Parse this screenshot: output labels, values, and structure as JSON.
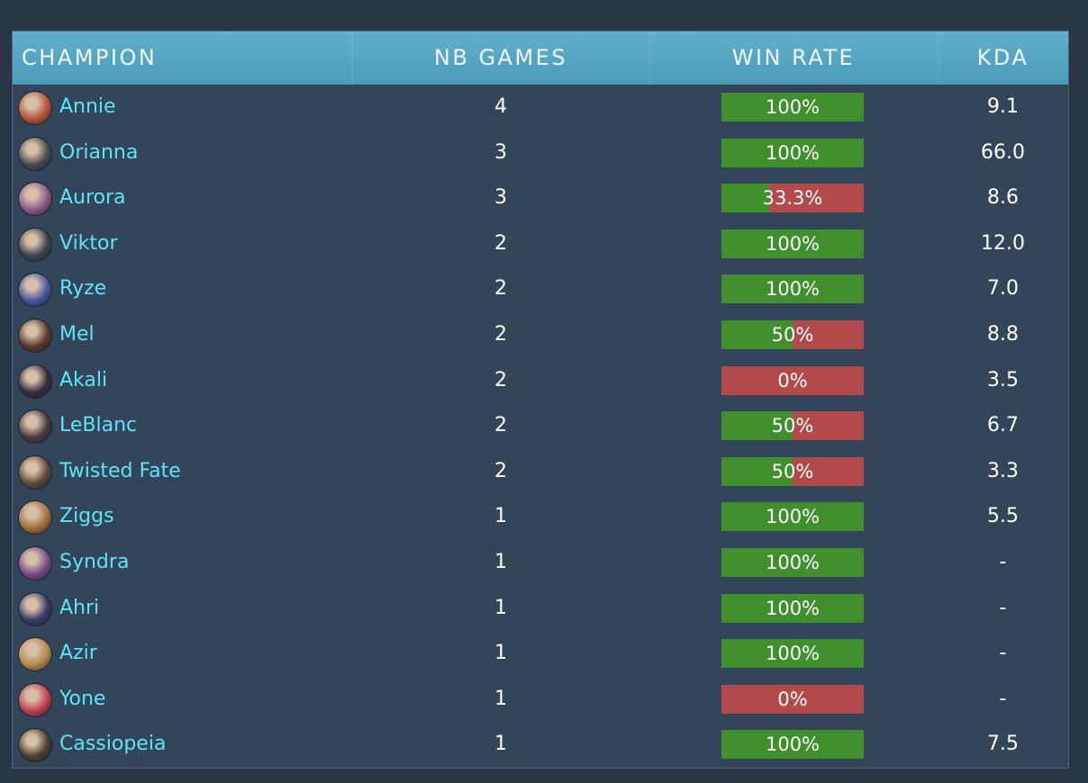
{
  "table": {
    "headers": [
      "CHAMPION",
      "NB GAMES",
      "WIN RATE",
      "KDA"
    ],
    "rows": [
      {
        "champion": "Annie",
        "games": 4,
        "win_rate": {
          "value": 100,
          "label": "100%"
        },
        "kda": "9.1"
      },
      {
        "champion": "Orianna",
        "games": 3,
        "win_rate": {
          "value": 100,
          "label": "100%"
        },
        "kda": "66.0"
      },
      {
        "champion": "Aurora",
        "games": 3,
        "win_rate": {
          "value": 33.3,
          "label": "33.3%"
        },
        "kda": "8.6"
      },
      {
        "champion": "Viktor",
        "games": 2,
        "win_rate": {
          "value": 100,
          "label": "100%"
        },
        "kda": "12.0"
      },
      {
        "champion": "Ryze",
        "games": 2,
        "win_rate": {
          "value": 100,
          "label": "100%"
        },
        "kda": "7.0"
      },
      {
        "champion": "Mel",
        "games": 2,
        "win_rate": {
          "value": 50,
          "label": "50%"
        },
        "kda": "8.8"
      },
      {
        "champion": "Akali",
        "games": 2,
        "win_rate": {
          "value": 0,
          "label": "0%"
        },
        "kda": "3.5"
      },
      {
        "champion": "LeBlanc",
        "games": 2,
        "win_rate": {
          "value": 50,
          "label": "50%"
        },
        "kda": "6.7"
      },
      {
        "champion": "Twisted Fate",
        "games": 2,
        "win_rate": {
          "value": 50,
          "label": "50%"
        },
        "kda": "3.3"
      },
      {
        "champion": "Ziggs",
        "games": 1,
        "win_rate": {
          "value": 100,
          "label": "100%"
        },
        "kda": "5.5"
      },
      {
        "champion": "Syndra",
        "games": 1,
        "win_rate": {
          "value": 100,
          "label": "100%"
        },
        "kda": "-"
      },
      {
        "champion": "Ahri",
        "games": 1,
        "win_rate": {
          "value": 100,
          "label": "100%"
        },
        "kda": "-"
      },
      {
        "champion": "Azir",
        "games": 1,
        "win_rate": {
          "value": 100,
          "label": "100%"
        },
        "kda": "-"
      },
      {
        "champion": "Yone",
        "games": 1,
        "win_rate": {
          "value": 0,
          "label": "0%"
        },
        "kda": "-"
      },
      {
        "champion": "Cassiopeia",
        "games": 1,
        "win_rate": {
          "value": 100,
          "label": "100%"
        },
        "kda": "7.5"
      }
    ]
  }
}
